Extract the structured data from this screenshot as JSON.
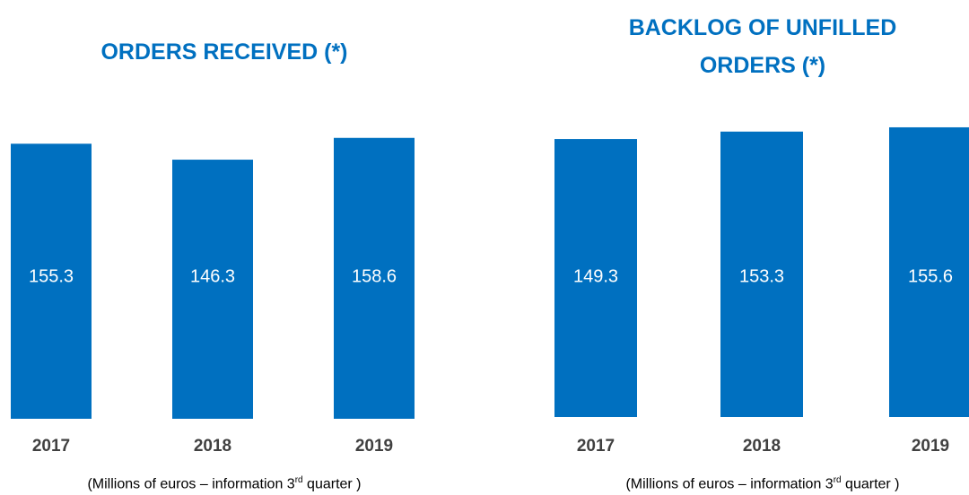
{
  "chart_data": [
    {
      "type": "bar",
      "title": "ORDERS RECEIVED (*)",
      "categories": [
        "2017",
        "2018",
        "2019"
      ],
      "values": [
        155.3,
        146.3,
        158.6
      ],
      "color": "#0070c0",
      "note": [
        "(Millions of euros – information 3",
        "rd",
        " quarter )"
      ]
    },
    {
      "type": "bar",
      "title": "BACKLOG OF UNFILLED ORDERS (*)",
      "categories": [
        "2017",
        "2018",
        "2019"
      ],
      "values": [
        149.3,
        153.3,
        155.6
      ],
      "color": "#0070c0",
      "note": [
        "(Millions of euros – information 3",
        "rd",
        " quarter )"
      ]
    }
  ]
}
